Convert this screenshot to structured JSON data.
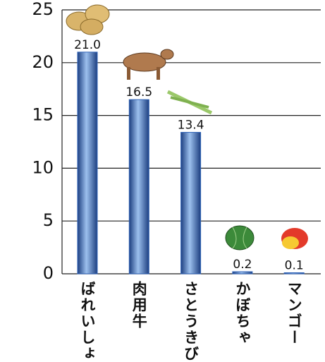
{
  "chart_data": {
    "type": "bar",
    "categories": [
      "ばれいしょ",
      "肉用牛",
      "さとうきび",
      "かぼちゃ",
      "マンゴー"
    ],
    "values": [
      21.0,
      16.5,
      13.4,
      0.2,
      0.1
    ],
    "value_labels": [
      "21.0",
      "16.5",
      "13.4",
      "0.2",
      "0.1"
    ],
    "color": "#2f63b8",
    "ylim": [
      0,
      25
    ],
    "yticks": [
      0,
      5,
      10,
      15,
      20,
      25
    ],
    "grid": true
  }
}
